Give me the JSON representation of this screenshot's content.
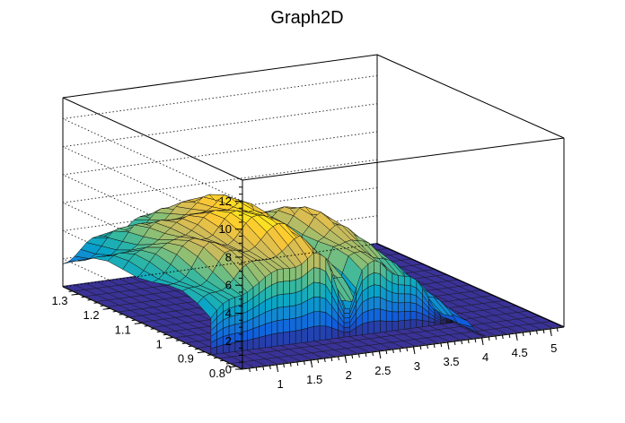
{
  "chart_data": {
    "type": "surface",
    "title": "Graph2D",
    "x_axis": {
      "range": [
        0.5,
        5.2
      ],
      "ticks": [
        "1",
        "1.5",
        "2",
        "2.5",
        "3",
        "3.5",
        "4",
        "4.5",
        "5"
      ]
    },
    "y_axis": {
      "range": [
        0.78,
        1.35
      ],
      "ticks": [
        "0.8",
        "0.9",
        "1",
        "1.1",
        "1.2",
        "1.3"
      ]
    },
    "z_axis": {
      "range": [
        0,
        13.5
      ],
      "ticks": [
        "0",
        "2",
        "4",
        "6",
        "8",
        "10",
        "12"
      ]
    },
    "grid": true,
    "colormap": [
      "#352a87",
      "#0f5cdd",
      "#1481d6",
      "#06a4ca",
      "#2eb7a4",
      "#87bf77",
      "#d1bb59",
      "#fec832",
      "#f9fb0e"
    ],
    "surface_profile": {
      "x": [
        0.5,
        0.8,
        1.1,
        1.4,
        1.7,
        2.0,
        2.2,
        2.4,
        2.5,
        2.7,
        2.95,
        3.2,
        3.5,
        4.0,
        5.2
      ],
      "z": [
        3.5,
        4.5,
        6.0,
        6.3,
        7.3,
        7.8,
        7.0,
        4.0,
        2.2,
        5.5,
        6.5,
        5.5,
        4.0,
        0.2,
        0.1
      ]
    }
  }
}
